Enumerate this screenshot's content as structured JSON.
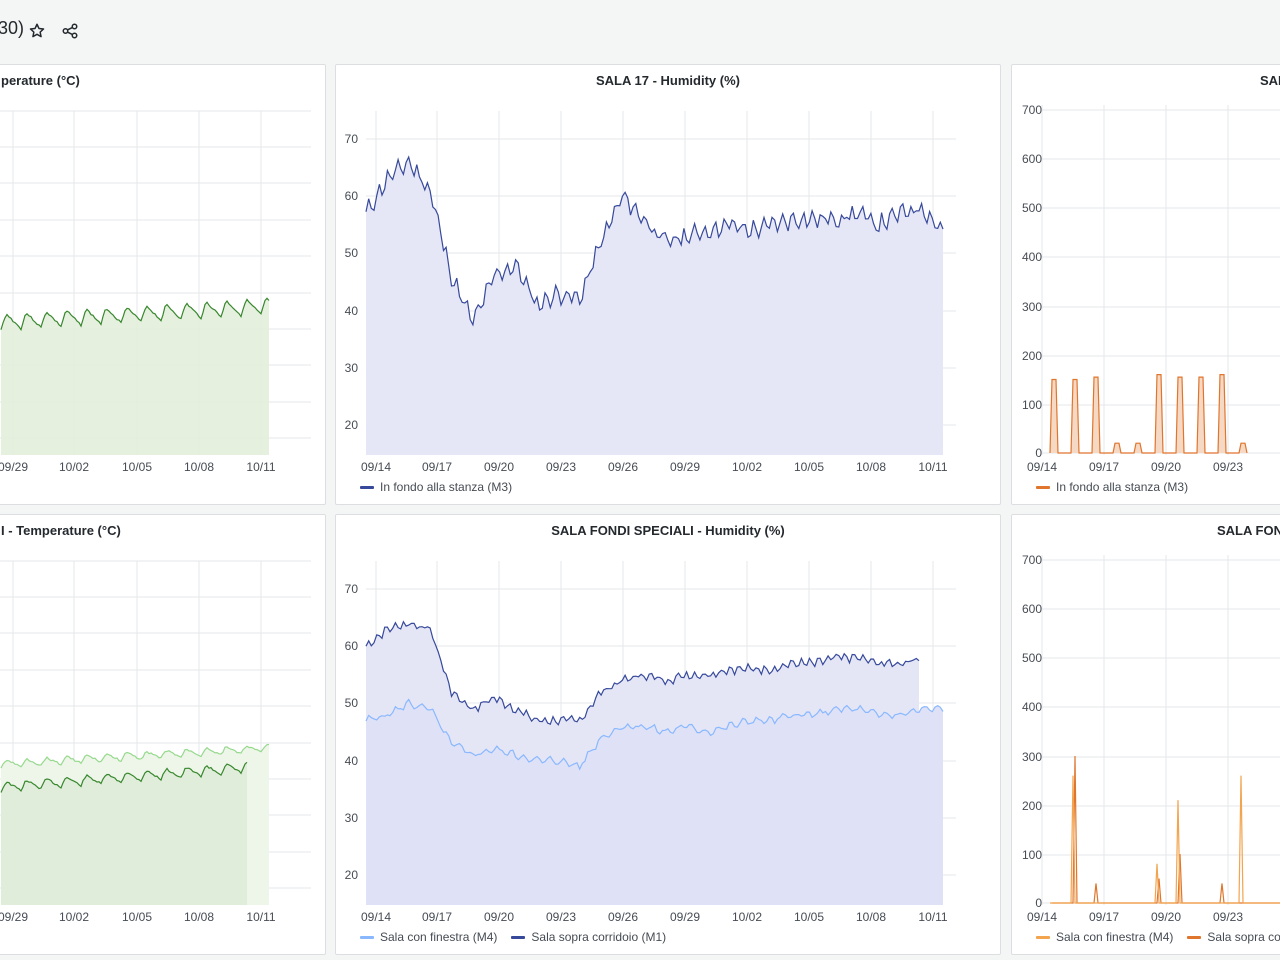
{
  "dashboard": {
    "title_fragment": "30)",
    "star_icon": "star-icon",
    "share_icon": "share-icon"
  },
  "panels": [
    {
      "id": "tl",
      "title": "perature (°C)",
      "color": "#56a64b",
      "fill": "#e3eedc",
      "legend": [],
      "xticks": [
        "09/29",
        "10/02",
        "10/05",
        "10/08",
        "10/11"
      ]
    },
    {
      "id": "tm",
      "title": "SALA 17 - Humidity (%)",
      "legend": [
        {
          "label": "In fondo alla stanza (M3)",
          "color": "#37499b"
        }
      ],
      "xticks": [
        "09/14",
        "09/17",
        "09/20",
        "09/23",
        "09/26",
        "09/29",
        "10/02",
        "10/05",
        "10/08",
        "10/11"
      ],
      "yticks": [
        "70",
        "60",
        "50",
        "40",
        "30",
        "20"
      ]
    },
    {
      "id": "tr",
      "title": "SAL",
      "legend": [
        {
          "label": "In fondo alla stanza (M3)",
          "color": "#e0752d"
        }
      ],
      "xticks": [
        "09/14",
        "09/17",
        "09/20",
        "09/23"
      ],
      "yticks": [
        "700",
        "600",
        "500",
        "400",
        "300",
        "200",
        "100",
        "0"
      ]
    },
    {
      "id": "bl",
      "title": "I - Temperature (°C)",
      "legend": [],
      "xticks": [
        "09/29",
        "10/02",
        "10/05",
        "10/08",
        "10/11"
      ]
    },
    {
      "id": "bm",
      "title": "SALA FONDI SPECIALI - Humidity (%)",
      "legend": [
        {
          "label": "Sala con finestra (M4)",
          "color": "#8ab8ff"
        },
        {
          "label": "Sala sopra corridoio (M1)",
          "color": "#37499b"
        }
      ],
      "xticks": [
        "09/14",
        "09/17",
        "09/20",
        "09/23",
        "09/26",
        "09/29",
        "10/02",
        "10/05",
        "10/08",
        "10/11"
      ],
      "yticks": [
        "70",
        "60",
        "50",
        "40",
        "30",
        "20"
      ]
    },
    {
      "id": "br",
      "title": "SALA FON",
      "legend": [
        {
          "label": "Sala con finestra (M4)",
          "color": "#f2a44e"
        },
        {
          "label": "Sala sopra co",
          "color": "#e0752d"
        }
      ],
      "xticks": [
        "09/14",
        "09/17",
        "09/20",
        "09/23"
      ],
      "yticks": [
        "700",
        "600",
        "500",
        "400",
        "300",
        "200",
        "100",
        "0"
      ]
    }
  ],
  "chart_data": [
    {
      "type": "area",
      "title": "SALA 17 - Humidity (%)",
      "x": [
        "09/14",
        "09/15",
        "09/16",
        "09/17",
        "09/18",
        "09/19",
        "09/20",
        "09/21",
        "09/22",
        "09/23",
        "09/24",
        "09/25",
        "09/26",
        "09/27",
        "09/28",
        "09/29",
        "09/30",
        "10/01",
        "10/02",
        "10/03",
        "10/04",
        "10/05",
        "10/06",
        "10/07",
        "10/08",
        "10/09",
        "10/10",
        "10/11"
      ],
      "series": [
        {
          "name": "In fondo alla stanza (M3)",
          "values": [
            57,
            63,
            66,
            61,
            46,
            38,
            46,
            48,
            41,
            43,
            42,
            52,
            60,
            56,
            52,
            53,
            54,
            55,
            54,
            55,
            56,
            56,
            56,
            57,
            55,
            57,
            58,
            54
          ]
        }
      ],
      "ylim": [
        15,
        75
      ]
    },
    {
      "type": "area",
      "title": "SALA FONDI SPECIALI - Humidity (%)",
      "x": [
        "09/14",
        "09/15",
        "09/16",
        "09/17",
        "09/18",
        "09/19",
        "09/20",
        "09/21",
        "09/22",
        "09/23",
        "09/24",
        "09/25",
        "09/26",
        "09/27",
        "09/28",
        "09/29",
        "09/30",
        "10/01",
        "10/02",
        "10/03",
        "10/04",
        "10/05",
        "10/06",
        "10/07",
        "10/08",
        "10/09",
        "10/10",
        "10/11"
      ],
      "series": [
        {
          "name": "Sala con finestra (M4)",
          "values": [
            47,
            48,
            50,
            49,
            43,
            41,
            42,
            41,
            40,
            40,
            39,
            44,
            46,
            46,
            45,
            46,
            45,
            46,
            47,
            47,
            48,
            48,
            49,
            49,
            48,
            48,
            49,
            49
          ]
        },
        {
          "name": "Sala sopra corridoio (M1)",
          "values": [
            60,
            63,
            64,
            63,
            52,
            49,
            51,
            49,
            47,
            47,
            47,
            52,
            54,
            55,
            54,
            55,
            55,
            56,
            56,
            56,
            57,
            57,
            58,
            58,
            57,
            57,
            58,
            null
          ]
        }
      ],
      "ylim": [
        15,
        75
      ]
    },
    {
      "type": "area",
      "title": "SAL",
      "x": [
        "09/14",
        "09/15",
        "09/16",
        "09/17",
        "09/18",
        "09/19",
        "09/20",
        "09/21",
        "09/22",
        "09/23"
      ],
      "series": [
        {
          "name": "In fondo alla stanza (M3)",
          "values": [
            150,
            150,
            155,
            20,
            20,
            160,
            155,
            155,
            160,
            20
          ]
        }
      ],
      "ylim": [
        0,
        700
      ]
    },
    {
      "type": "line",
      "title": "SALA FON",
      "x": [
        "09/14",
        "09/15",
        "09/16",
        "09/17",
        "09/18",
        "09/19",
        "09/20",
        "09/21",
        "09/22",
        "09/23"
      ],
      "series": [
        {
          "name": "Sala con finestra (M4)",
          "values": [
            0,
            260,
            0,
            0,
            0,
            80,
            210,
            0,
            0,
            260
          ]
        },
        {
          "name": "Sala sopra co",
          "values": [
            0,
            300,
            40,
            0,
            0,
            50,
            100,
            0,
            40,
            0
          ]
        }
      ],
      "ylim": [
        0,
        700
      ]
    }
  ]
}
